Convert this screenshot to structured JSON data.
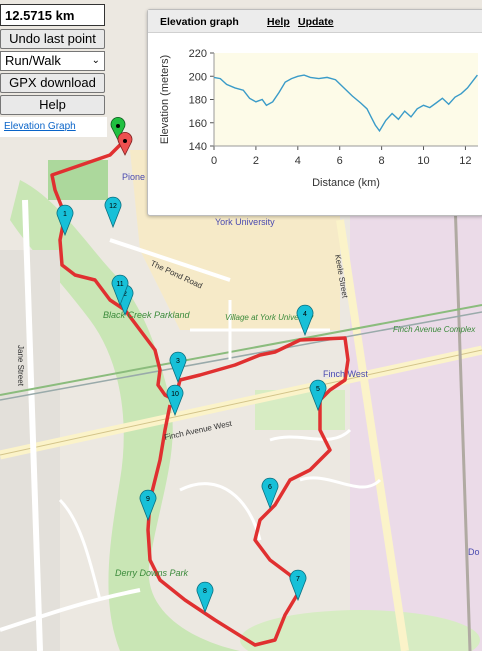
{
  "controls": {
    "distance": "12.5715 km",
    "undo_label": "Undo last point",
    "mode_selected": "Run/Walk",
    "gpx_label": "GPX download",
    "help_label": "Help",
    "elevation_link": "Elevation Graph"
  },
  "elevation_panel": {
    "title": "Elevation graph",
    "help_link": "Help",
    "update_link": "Update"
  },
  "chart_data": {
    "type": "line",
    "xlabel": "Distance (km)",
    "ylabel": "Elevation (meters)",
    "xlim": [
      0,
      12.6
    ],
    "ylim": [
      140,
      220
    ],
    "xticks": [
      0,
      2,
      4,
      6,
      8,
      10,
      12
    ],
    "yticks": [
      140,
      160,
      180,
      200,
      220
    ],
    "grid": false,
    "line_color": "#3a9bc8",
    "background_color": "#fdfbe8",
    "x": [
      0,
      0.3,
      0.6,
      1.0,
      1.4,
      1.7,
      2.0,
      2.3,
      2.5,
      2.8,
      3.1,
      3.4,
      3.7,
      4.0,
      4.3,
      4.6,
      5.0,
      5.4,
      5.8,
      6.2,
      6.6,
      7.0,
      7.3,
      7.5,
      7.7,
      7.9,
      8.2,
      8.5,
      8.8,
      9.1,
      9.4,
      9.7,
      10.0,
      10.3,
      10.6,
      10.9,
      11.2,
      11.5,
      11.8,
      12.1,
      12.4,
      12.57
    ],
    "y": [
      199,
      198,
      193,
      190,
      188,
      181,
      178,
      180,
      175,
      178,
      186,
      195,
      198,
      200,
      201,
      199,
      198,
      199,
      197,
      190,
      183,
      177,
      172,
      165,
      158,
      153,
      162,
      168,
      163,
      170,
      165,
      172,
      175,
      173,
      177,
      181,
      176,
      182,
      185,
      190,
      197,
      201
    ],
    "markers": [
      "1",
      "2",
      "3",
      "4",
      "5",
      "6",
      "7",
      "8",
      "9",
      "10",
      "11",
      "12"
    ]
  },
  "map": {
    "labels": {
      "york_university": "York University",
      "black_creek_parkland": "Black Creek Parkland",
      "village_at_york": "Village at York University",
      "finch_avenue_complex": "Finch Avenue Complex",
      "derry_downs_park": "Derry Downs Park",
      "the_pond_road": "The Pond Road",
      "keele_street": "Keele Street",
      "jane_street": "Jane Street",
      "finch_avenue_west": "Finch Avenue West",
      "finch_west": "Finch West",
      "pioneer_village": "Pione Villa",
      "do": "Do"
    },
    "route_color": "#e03030",
    "marker_color": "#17c0d8"
  }
}
